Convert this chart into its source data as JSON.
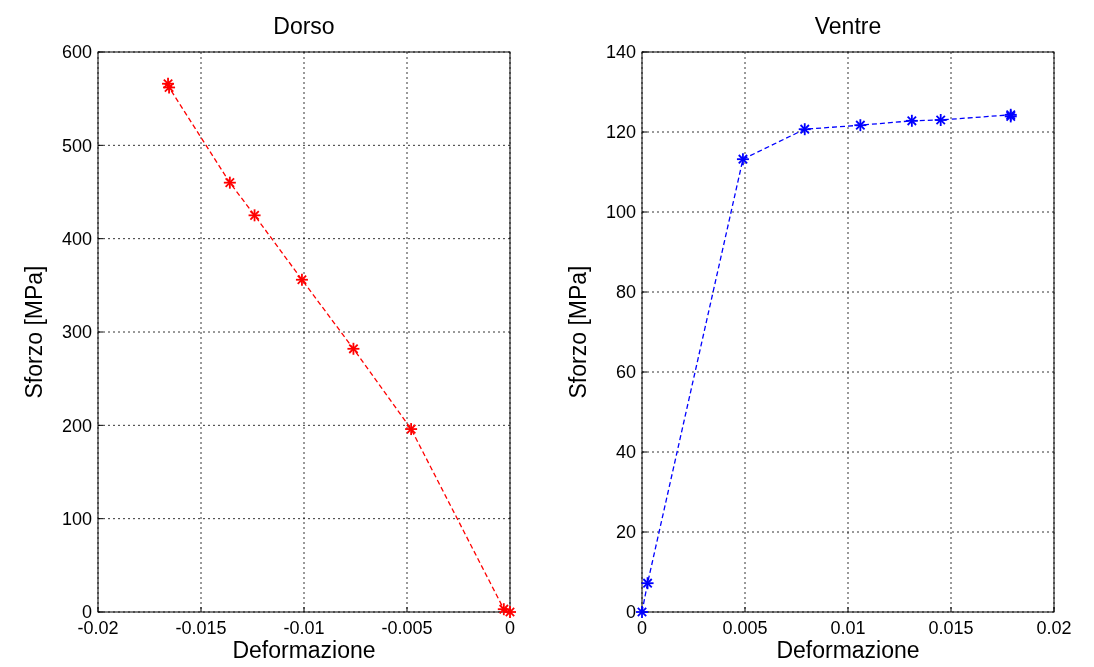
{
  "chart_data": [
    {
      "type": "line",
      "title": "Dorso",
      "xlabel": "Deformazione",
      "ylabel": "Sforzo [MPa]",
      "xlim": [
        -0.02,
        0
      ],
      "xticks": [
        -0.02,
        -0.015,
        -0.01,
        -0.005,
        0
      ],
      "ylim": [
        0,
        600
      ],
      "yticks": [
        0,
        100,
        200,
        300,
        400,
        500,
        600
      ],
      "grid": true,
      "marker": "cross",
      "line_style": "dashed",
      "series": [
        {
          "color": "#ff0000",
          "x": [
            -0.0166,
            -0.01655,
            -0.0136,
            -0.0124,
            -0.0101,
            -0.0076,
            -0.0048,
            -0.0003,
            0
          ],
          "values": [
            566,
            562,
            460,
            425,
            356,
            282,
            196,
            3,
            0
          ]
        }
      ]
    },
    {
      "type": "line",
      "title": "Ventre",
      "xlabel": "Deformazione",
      "ylabel": "Sforzo [MPa]",
      "xlim": [
        0,
        0.02
      ],
      "xticks": [
        0,
        0.005,
        0.01,
        0.015,
        0.02
      ],
      "ylim": [
        0,
        140
      ],
      "yticks": [
        0,
        20,
        40,
        60,
        80,
        100,
        120,
        140
      ],
      "grid": true,
      "marker": "cross",
      "line_style": "dashed",
      "series": [
        {
          "color": "#0000ff",
          "x": [
            0,
            0.00027,
            0.0049,
            0.0079,
            0.0106,
            0.0131,
            0.0145,
            0.0179,
            0.0179
          ],
          "values": [
            0,
            7.2,
            113.2,
            120.7,
            121.7,
            122.8,
            123,
            124.3,
            123.9
          ]
        }
      ]
    }
  ]
}
